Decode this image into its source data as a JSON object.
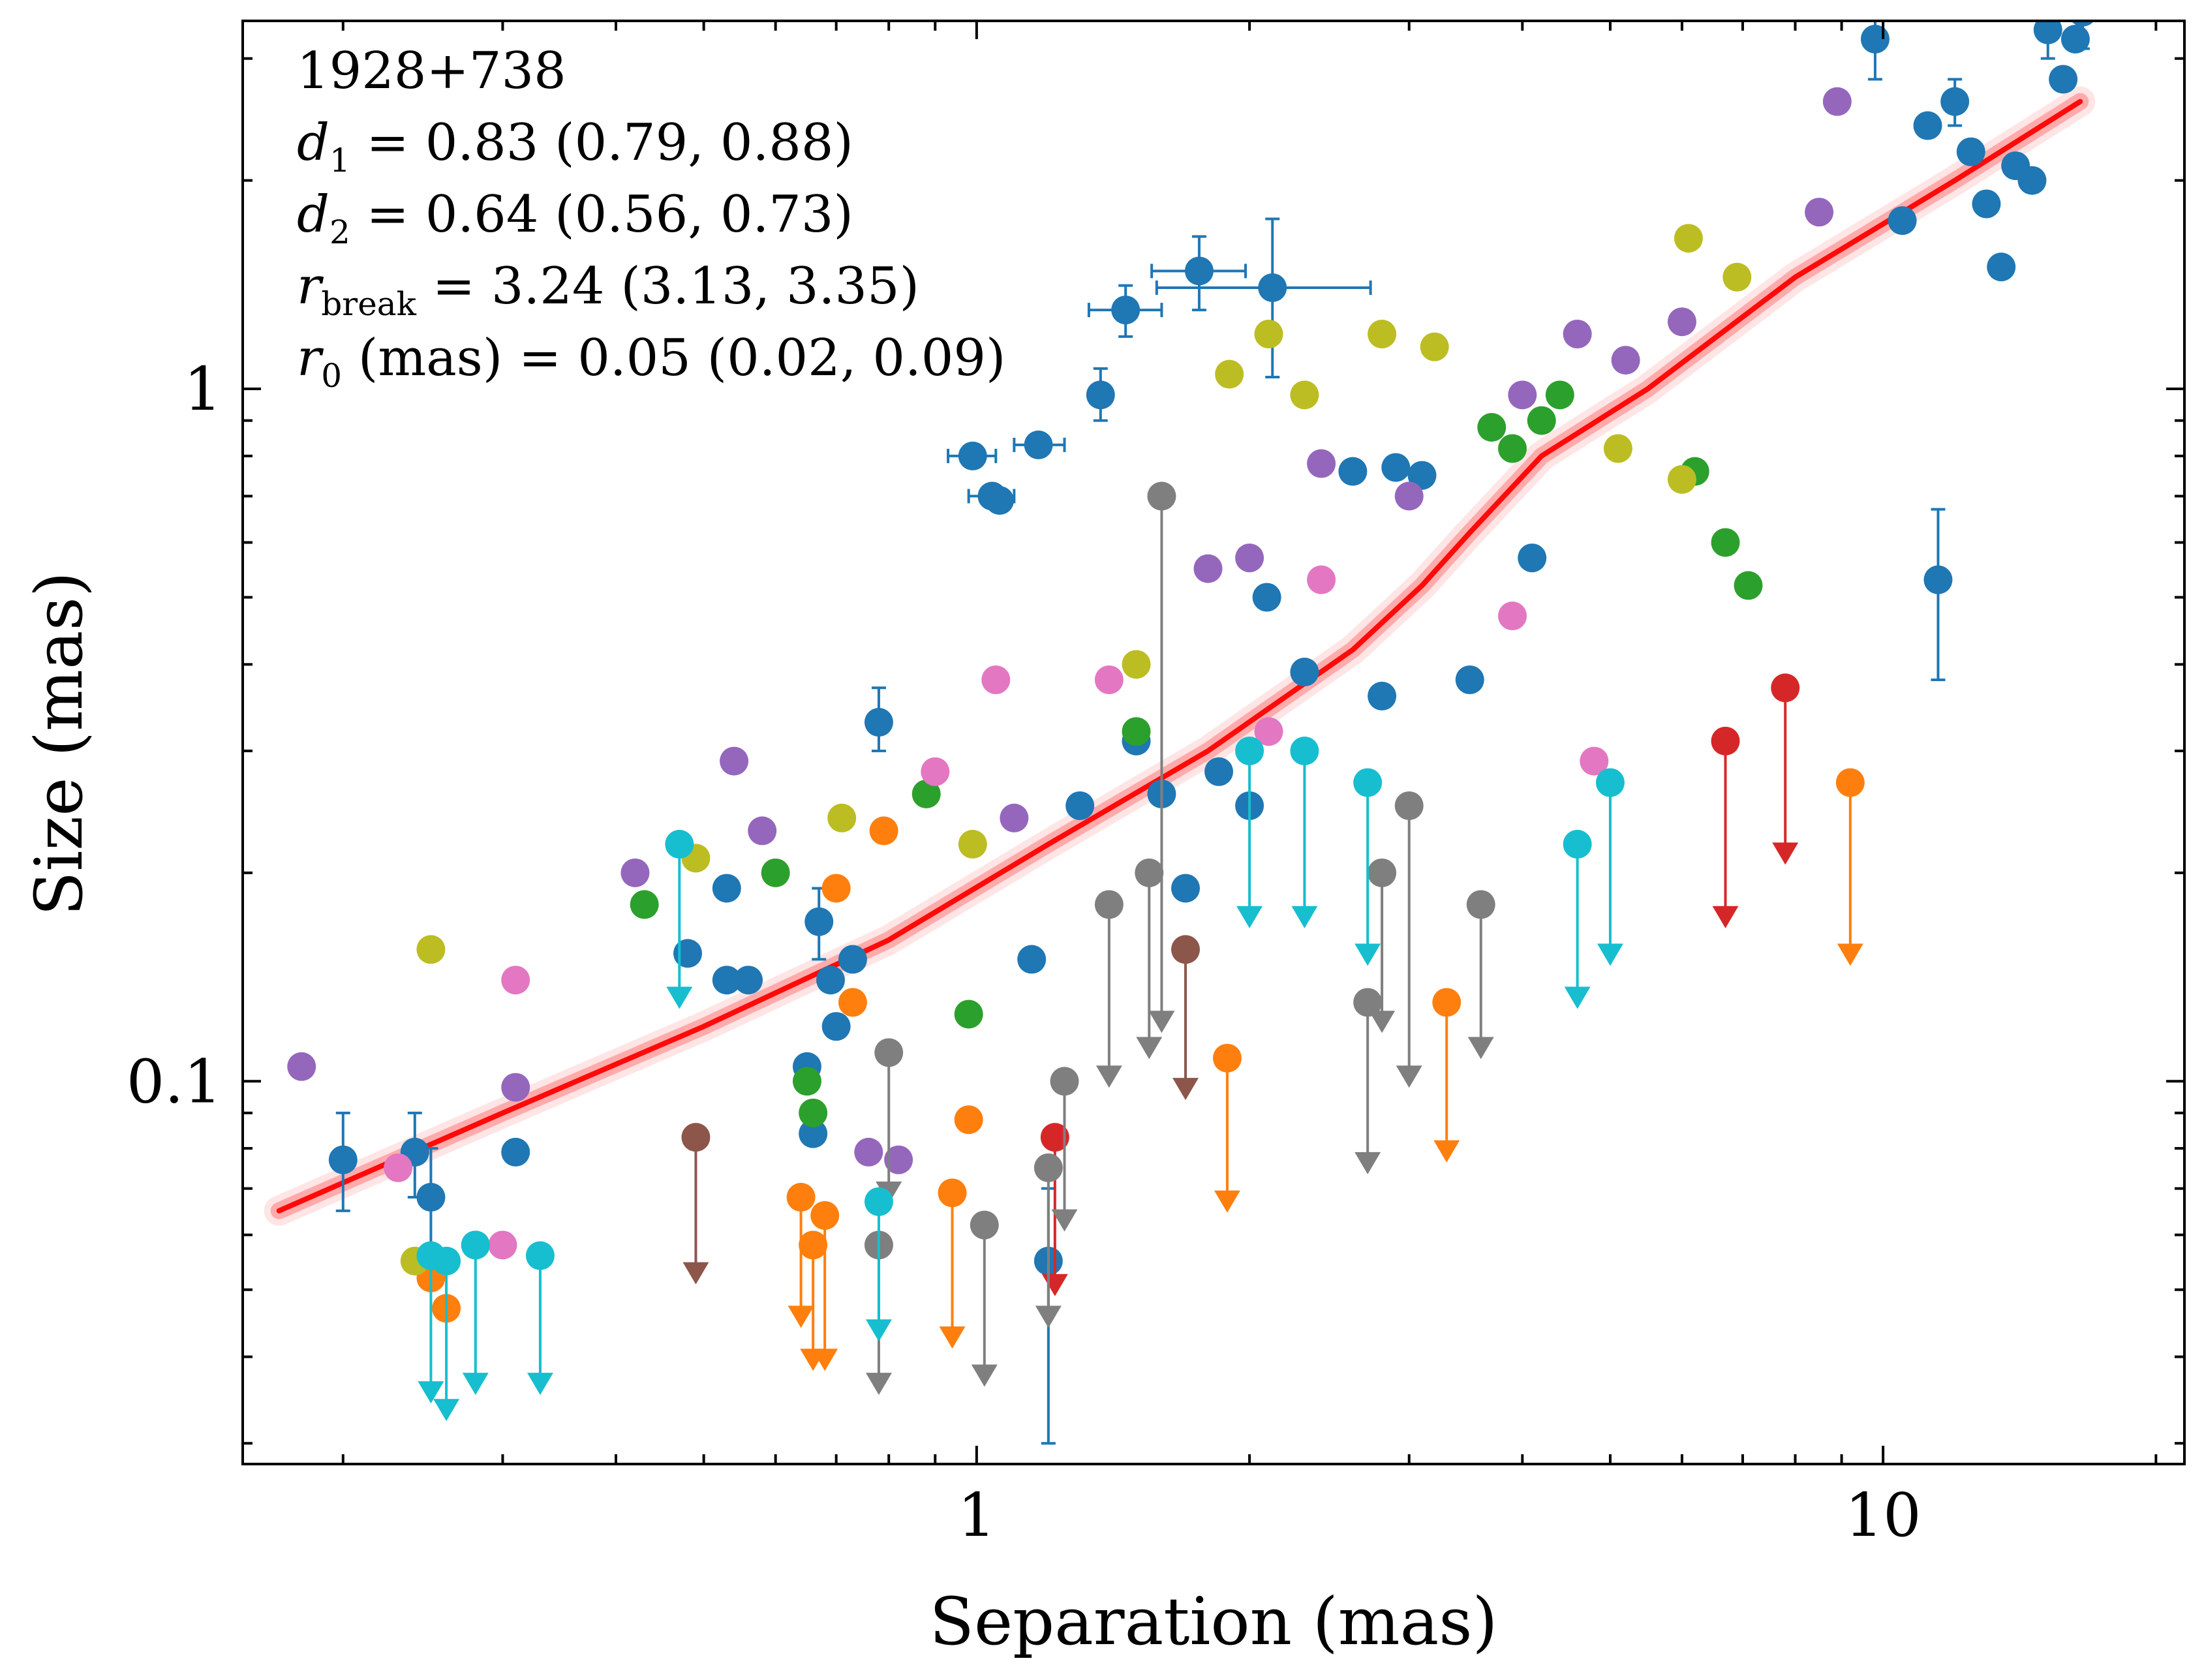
{
  "chart_data": {
    "type": "scatter",
    "title": "",
    "xlabel": "Separation (mas)",
    "ylabel": "Size (mas)",
    "xscale": "log",
    "yscale": "log",
    "xlim": [
      0.155,
      21.5
    ],
    "ylim": [
      0.028,
      3.4
    ],
    "x_tick_labels": [
      {
        "value": 1,
        "label": "1"
      },
      {
        "value": 10,
        "label": "10"
      }
    ],
    "y_tick_labels": [
      {
        "value": 0.1,
        "label": "0.1"
      },
      {
        "value": 1,
        "label": "1"
      }
    ],
    "annotation": {
      "source": "1928+738",
      "params": [
        {
          "sym": "d",
          "sub": "1",
          "text": " = 0.83 (0.79, 0.88)"
        },
        {
          "sym": "d",
          "sub": "2",
          "text": " = 0.64 (0.56, 0.73)"
        },
        {
          "sym": "r",
          "sub": "break",
          "text": " = 3.24 (3.13, 3.35)"
        },
        {
          "sym": "r",
          "sub": "0",
          "text": " (mas) = 0.05 (0.02, 0.09)"
        }
      ]
    },
    "fit": {
      "name": "broken power-law fit",
      "color": "#ff0000",
      "x": [
        0.17,
        0.3,
        0.5,
        0.8,
        1.2,
        1.8,
        2.6,
        3.1,
        3.5,
        4.2,
        5.5,
        8,
        12,
        16.5
      ],
      "y": [
        0.065,
        0.09,
        0.12,
        0.16,
        0.22,
        0.3,
        0.42,
        0.52,
        0.62,
        0.8,
        1.0,
        1.45,
        2.0,
        2.6
      ]
    },
    "series": [
      {
        "name": "tab:blue",
        "color": "#1f77b4",
        "detections": [
          {
            "x": 0.2,
            "y": 0.077,
            "ylo": 0.065,
            "yhi": 0.09
          },
          {
            "x": 0.24,
            "y": 0.079,
            "ylo": 0.068,
            "yhi": 0.09
          },
          {
            "x": 0.25,
            "y": 0.068,
            "ylo": 0.058,
            "yhi": 0.08
          },
          {
            "x": 0.28,
            "y": 0.058
          },
          {
            "x": 0.31,
            "y": 0.079
          },
          {
            "x": 0.48,
            "y": 0.153
          },
          {
            "x": 0.53,
            "y": 0.14
          },
          {
            "x": 0.53,
            "y": 0.19
          },
          {
            "x": 0.56,
            "y": 0.14
          },
          {
            "x": 0.65,
            "y": 0.105
          },
          {
            "x": 0.66,
            "y": 0.084
          },
          {
            "x": 0.67,
            "y": 0.17,
            "ylo": 0.15,
            "yhi": 0.19
          },
          {
            "x": 0.69,
            "y": 0.14
          },
          {
            "x": 0.7,
            "y": 0.12
          },
          {
            "x": 0.73,
            "y": 0.15
          },
          {
            "x": 0.78,
            "y": 0.33,
            "ylo": 0.3,
            "yhi": 0.37
          },
          {
            "x": 0.99,
            "y": 0.8,
            "xlo": 0.93,
            "xhi": 1.05
          },
          {
            "x": 1.04,
            "y": 0.7,
            "xlo": 0.98,
            "xhi": 1.1
          },
          {
            "x": 1.06,
            "y": 0.69
          },
          {
            "x": 1.15,
            "y": 0.15
          },
          {
            "x": 1.17,
            "y": 0.83,
            "xlo": 1.1,
            "xhi": 1.25
          },
          {
            "x": 1.2,
            "y": 0.055,
            "ylo": 0.03,
            "yhi": 0.07
          },
          {
            "x": 1.3,
            "y": 0.25
          },
          {
            "x": 1.37,
            "y": 0.98,
            "ylo": 0.9,
            "yhi": 1.07
          },
          {
            "x": 1.46,
            "y": 1.3,
            "xlo": 1.33,
            "xhi": 1.6,
            "ylo": 1.19,
            "yhi": 1.41
          },
          {
            "x": 1.5,
            "y": 0.31
          },
          {
            "x": 1.6,
            "y": 0.26
          },
          {
            "x": 1.7,
            "y": 0.19
          },
          {
            "x": 1.76,
            "y": 1.48,
            "xlo": 1.56,
            "xhi": 1.98,
            "ylo": 1.3,
            "yhi": 1.66
          },
          {
            "x": 1.85,
            "y": 0.28
          },
          {
            "x": 2.0,
            "y": 0.25
          },
          {
            "x": 2.09,
            "y": 0.5
          },
          {
            "x": 2.12,
            "y": 1.4,
            "xlo": 1.58,
            "xhi": 2.72,
            "ylo": 1.04,
            "yhi": 1.76
          },
          {
            "x": 2.3,
            "y": 0.39
          },
          {
            "x": 2.6,
            "y": 0.76
          },
          {
            "x": 2.8,
            "y": 0.36
          },
          {
            "x": 2.9,
            "y": 0.77
          },
          {
            "x": 3.1,
            "y": 0.75
          },
          {
            "x": 3.5,
            "y": 0.38
          },
          {
            "x": 4.1,
            "y": 0.57
          },
          {
            "x": 9.8,
            "y": 3.2,
            "ylo": 2.8,
            "yhi": 3.6
          },
          {
            "x": 10.5,
            "y": 1.75
          },
          {
            "x": 11.2,
            "y": 2.4
          },
          {
            "x": 11.5,
            "y": 0.53,
            "ylo": 0.38,
            "yhi": 0.67
          },
          {
            "x": 12,
            "y": 2.6,
            "ylo": 2.4,
            "yhi": 2.8
          },
          {
            "x": 12.5,
            "y": 2.2
          },
          {
            "x": 13,
            "y": 1.85
          },
          {
            "x": 13.5,
            "y": 1.5
          },
          {
            "x": 14,
            "y": 2.1
          },
          {
            "x": 14.6,
            "y": 2.0
          },
          {
            "x": 15.2,
            "y": 3.3,
            "ylo": 3.0,
            "yhi": 3.6
          },
          {
            "x": 15.8,
            "y": 2.8
          },
          {
            "x": 16.3,
            "y": 3.2
          },
          {
            "x": 16.6,
            "y": 3.5,
            "ylo": 3.1,
            "yhi": 4.0
          }
        ],
        "limits": []
      },
      {
        "name": "tab:orange",
        "color": "#ff7f0e",
        "detections": [
          {
            "x": 0.25,
            "y": 0.052
          },
          {
            "x": 0.26,
            "y": 0.047
          },
          {
            "x": 0.7,
            "y": 0.19
          },
          {
            "x": 0.73,
            "y": 0.13
          },
          {
            "x": 0.79,
            "y": 0.23
          },
          {
            "x": 0.98,
            "y": 0.088
          }
        ],
        "limits": [
          {
            "x": 0.64,
            "y": 0.068,
            "ylim": 0.045
          },
          {
            "x": 0.66,
            "y": 0.058,
            "ylim": 0.039
          },
          {
            "x": 0.68,
            "y": 0.064,
            "ylim": 0.039
          },
          {
            "x": 0.94,
            "y": 0.069,
            "ylim": 0.042
          },
          {
            "x": 1.89,
            "y": 0.108,
            "ylim": 0.066
          },
          {
            "x": 3.3,
            "y": 0.13,
            "ylim": 0.078
          },
          {
            "x": 9.2,
            "y": 0.27,
            "ylim": 0.15
          }
        ]
      },
      {
        "name": "tab:green",
        "color": "#2ca02c",
        "detections": [
          {
            "x": 0.43,
            "y": 0.18
          },
          {
            "x": 0.6,
            "y": 0.2
          },
          {
            "x": 0.65,
            "y": 0.1
          },
          {
            "x": 0.66,
            "y": 0.09
          },
          {
            "x": 0.88,
            "y": 0.26
          },
          {
            "x": 0.98,
            "y": 0.125
          },
          {
            "x": 1.5,
            "y": 0.32
          },
          {
            "x": 3.7,
            "y": 0.88
          },
          {
            "x": 3.9,
            "y": 0.82
          },
          {
            "x": 4.2,
            "y": 0.9
          },
          {
            "x": 4.4,
            "y": 0.98
          },
          {
            "x": 6.2,
            "y": 0.76
          },
          {
            "x": 6.7,
            "y": 0.6
          },
          {
            "x": 7.1,
            "y": 0.52
          }
        ],
        "limits": []
      },
      {
        "name": "tab:red",
        "color": "#d62728",
        "detections": [],
        "limits": [
          {
            "x": 1.22,
            "y": 0.083,
            "ylim": 0.05
          },
          {
            "x": 6.7,
            "y": 0.31,
            "ylim": 0.17
          },
          {
            "x": 7.8,
            "y": 0.37,
            "ylim": 0.21
          }
        ]
      },
      {
        "name": "tab:purple",
        "color": "#9467bd",
        "detections": [
          {
            "x": 0.18,
            "y": 0.105
          },
          {
            "x": 0.31,
            "y": 0.098
          },
          {
            "x": 0.42,
            "y": 0.2
          },
          {
            "x": 0.54,
            "y": 0.29
          },
          {
            "x": 0.58,
            "y": 0.23
          },
          {
            "x": 0.76,
            "y": 0.079
          },
          {
            "x": 0.82,
            "y": 0.077
          },
          {
            "x": 1.1,
            "y": 0.24
          },
          {
            "x": 1.8,
            "y": 0.55
          },
          {
            "x": 2.0,
            "y": 0.57
          },
          {
            "x": 2.4,
            "y": 0.78
          },
          {
            "x": 3.0,
            "y": 0.7
          },
          {
            "x": 4.0,
            "y": 0.98
          },
          {
            "x": 4.6,
            "y": 1.2
          },
          {
            "x": 5.2,
            "y": 1.1
          },
          {
            "x": 6.0,
            "y": 1.25
          },
          {
            "x": 8.5,
            "y": 1.8
          },
          {
            "x": 8.9,
            "y": 2.6
          }
        ],
        "limits": []
      },
      {
        "name": "tab:brown",
        "color": "#8c564b",
        "detections": [],
        "limits": [
          {
            "x": 0.49,
            "y": 0.083,
            "ylim": 0.052
          },
          {
            "x": 1.7,
            "y": 0.155,
            "ylim": 0.096
          }
        ]
      },
      {
        "name": "tab:pink",
        "color": "#e377c2",
        "detections": [
          {
            "x": 0.23,
            "y": 0.075
          },
          {
            "x": 0.3,
            "y": 0.058
          },
          {
            "x": 0.31,
            "y": 0.14
          },
          {
            "x": 0.9,
            "y": 0.28
          },
          {
            "x": 1.05,
            "y": 0.38
          },
          {
            "x": 1.4,
            "y": 0.38
          },
          {
            "x": 2.1,
            "y": 0.32
          },
          {
            "x": 2.4,
            "y": 0.53
          },
          {
            "x": 3.9,
            "y": 0.47
          },
          {
            "x": 4.8,
            "y": 0.29
          }
        ],
        "limits": []
      },
      {
        "name": "tab:gray",
        "color": "#7f7f7f",
        "detections": [],
        "limits": [
          {
            "x": 0.8,
            "y": 0.11,
            "ylim": 0.068
          },
          {
            "x": 0.78,
            "y": 0.058,
            "ylim": 0.036
          },
          {
            "x": 1.02,
            "y": 0.062,
            "ylim": 0.037
          },
          {
            "x": 1.2,
            "y": 0.075,
            "ylim": 0.045
          },
          {
            "x": 1.25,
            "y": 0.1,
            "ylim": 0.062
          },
          {
            "x": 1.4,
            "y": 0.18,
            "ylim": 0.1
          },
          {
            "x": 1.6,
            "y": 0.7,
            "ylim": 0.12
          },
          {
            "x": 1.55,
            "y": 0.2,
            "ylim": 0.11
          },
          {
            "x": 2.7,
            "y": 0.13,
            "ylim": 0.075
          },
          {
            "x": 2.8,
            "y": 0.2,
            "ylim": 0.12
          },
          {
            "x": 3.0,
            "y": 0.25,
            "ylim": 0.1
          },
          {
            "x": 3.6,
            "y": 0.18,
            "ylim": 0.11
          }
        ]
      },
      {
        "name": "tab:olive",
        "color": "#bcbd22",
        "detections": [
          {
            "x": 0.25,
            "y": 0.155
          },
          {
            "x": 0.24,
            "y": 0.055
          },
          {
            "x": 0.49,
            "y": 0.21
          },
          {
            "x": 0.71,
            "y": 0.24
          },
          {
            "x": 0.99,
            "y": 0.22
          },
          {
            "x": 1.5,
            "y": 0.4
          },
          {
            "x": 1.9,
            "y": 1.05
          },
          {
            "x": 2.1,
            "y": 1.2
          },
          {
            "x": 2.3,
            "y": 0.98
          },
          {
            "x": 2.8,
            "y": 1.2
          },
          {
            "x": 3.2,
            "y": 1.15
          },
          {
            "x": 5.1,
            "y": 0.82
          },
          {
            "x": 6.0,
            "y": 0.74
          },
          {
            "x": 6.1,
            "y": 1.65
          },
          {
            "x": 6.9,
            "y": 1.45
          }
        ],
        "limits": []
      },
      {
        "name": "tab:cyan",
        "color": "#17becf",
        "detections": [],
        "limits": [
          {
            "x": 0.25,
            "y": 0.056,
            "ylim": 0.035
          },
          {
            "x": 0.26,
            "y": 0.055,
            "ylim": 0.033
          },
          {
            "x": 0.28,
            "y": 0.058,
            "ylim": 0.036
          },
          {
            "x": 0.33,
            "y": 0.056,
            "ylim": 0.036
          },
          {
            "x": 0.47,
            "y": 0.22,
            "ylim": 0.13
          },
          {
            "x": 0.78,
            "y": 0.067,
            "ylim": 0.043
          },
          {
            "x": 2.0,
            "y": 0.3,
            "ylim": 0.17
          },
          {
            "x": 2.3,
            "y": 0.3,
            "ylim": 0.17
          },
          {
            "x": 2.7,
            "y": 0.27,
            "ylim": 0.15
          },
          {
            "x": 4.6,
            "y": 0.22,
            "ylim": 0.13
          },
          {
            "x": 5.0,
            "y": 0.27,
            "ylim": 0.15
          }
        ]
      }
    ]
  }
}
